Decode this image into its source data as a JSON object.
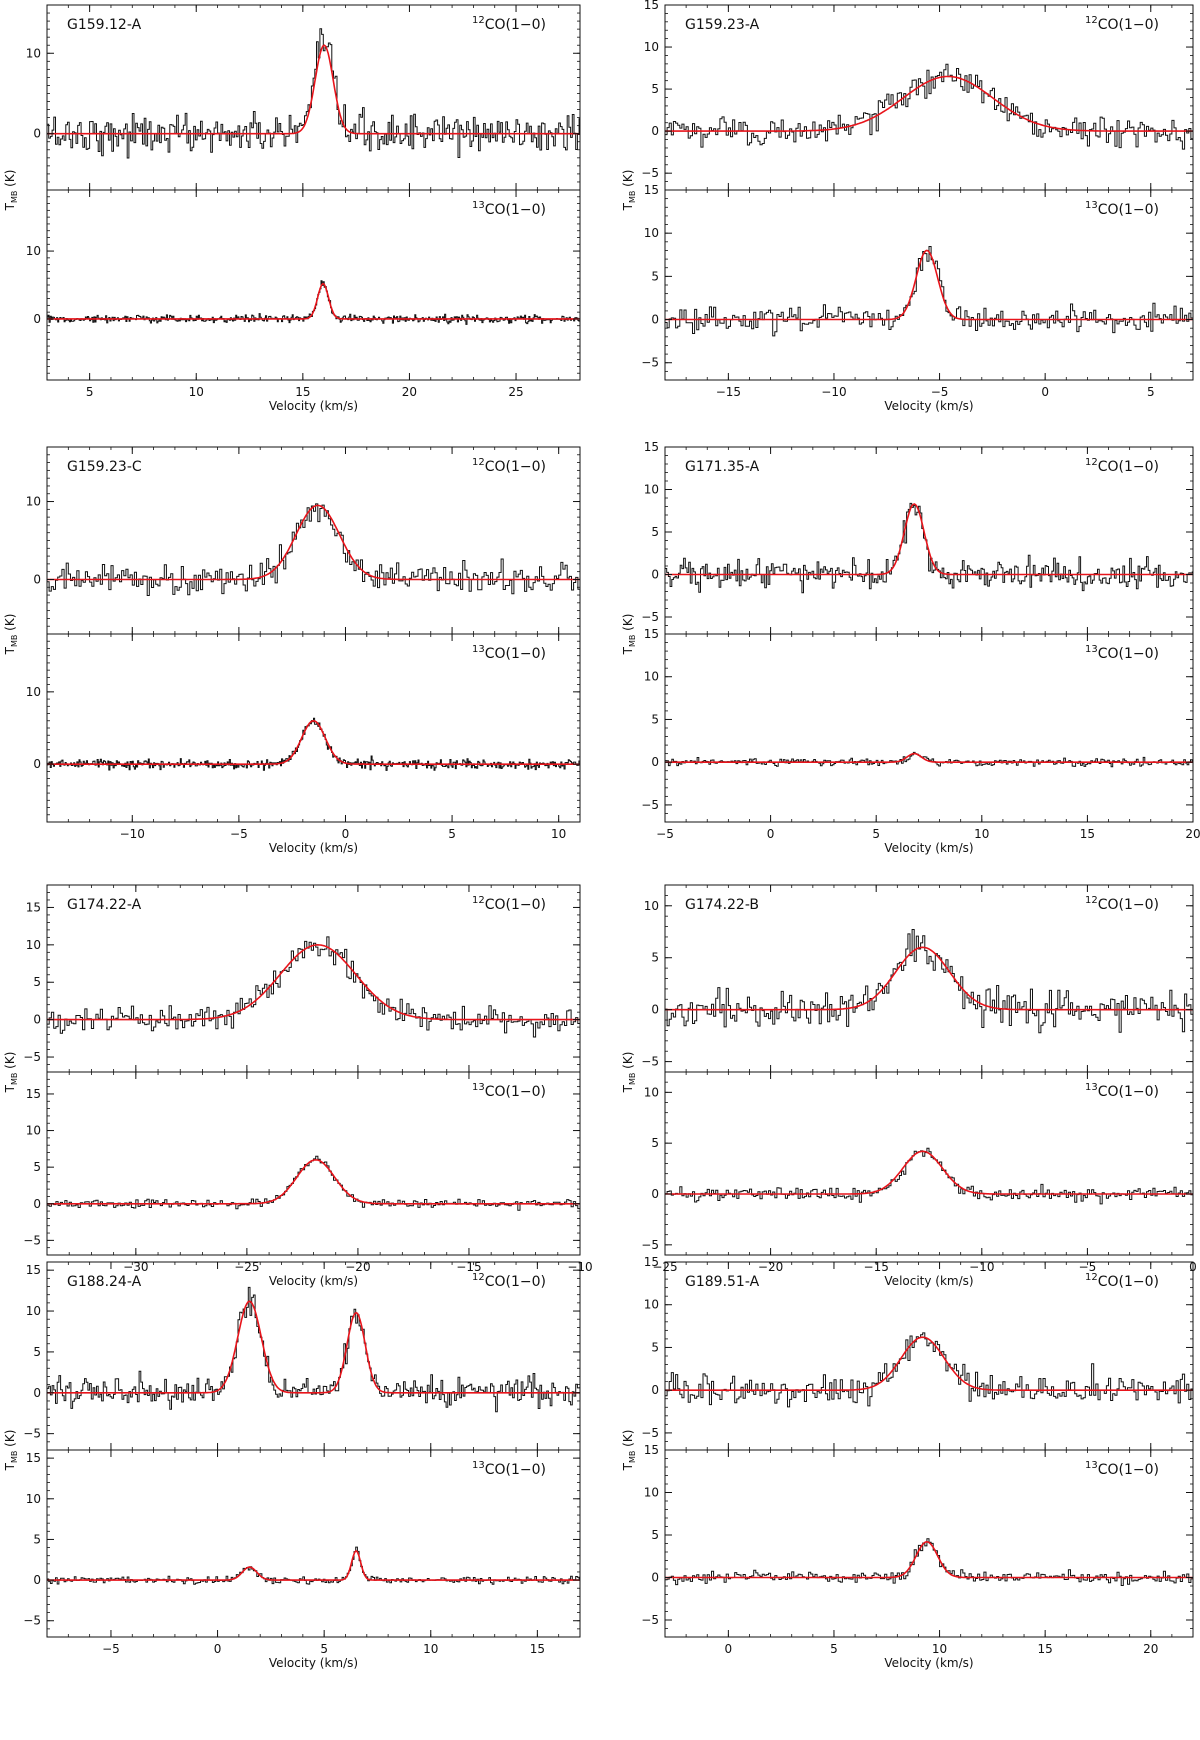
{
  "figure": {
    "x_axis_label": "Velocity (km/s)",
    "y_axis_label": "T",
    "y_axis_label_sub": "MB"
  },
  "chart_data": [
    {
      "type": "line",
      "title": "G159.12-A",
      "xlabel": "Velocity (km/s)",
      "ylabel": "TMB (K)",
      "xlim": [
        3,
        28
      ],
      "xticks": [
        5,
        10,
        15,
        20,
        25
      ],
      "panels": [
        {
          "label_iso": "12",
          "label_text": "CO(1−0)",
          "ylim": [
            -7,
            16
          ],
          "yticks": [
            0,
            10
          ],
          "fit": {
            "name": "Gaussian fit",
            "components": [
              {
                "amplitude": 11.0,
                "center": 16.0,
                "fwhm": 1.0
              }
            ]
          },
          "noise": 2.2,
          "bin": 0.08,
          "series_name": "spectrum"
        },
        {
          "label_iso": "13",
          "label_text": "CO(1−0)",
          "ylim": [
            -9,
            19
          ],
          "yticks": [
            0,
            10
          ],
          "fit": {
            "name": "Gaussian fit",
            "components": [
              {
                "amplitude": 5.2,
                "center": 15.95,
                "fwhm": 0.6
              }
            ]
          },
          "noise": 0.5,
          "bin": 0.05,
          "series_name": "spectrum"
        }
      ]
    },
    {
      "type": "line",
      "title": "G159.23-A",
      "xlabel": "Velocity (km/s)",
      "ylabel": "TMB (K)",
      "xlim": [
        -18,
        7
      ],
      "xticks": [
        -15,
        -10,
        -5,
        0,
        5
      ],
      "panels": [
        {
          "label_iso": "12",
          "label_text": "CO(1−0)",
          "ylim": [
            -7,
            15
          ],
          "yticks": [
            -5,
            0,
            5,
            10,
            15
          ],
          "fit": {
            "name": "Gaussian fit",
            "components": [
              {
                "amplitude": 6.5,
                "center": -4.6,
                "fwhm": 5.0
              }
            ]
          },
          "noise": 1.5,
          "bin": 0.1,
          "series_name": "spectrum"
        },
        {
          "label_iso": "13",
          "label_text": "CO(1−0)",
          "ylim": [
            -7,
            15
          ],
          "yticks": [
            -5,
            0,
            5,
            10,
            15
          ],
          "fit": {
            "name": "Gaussian fit",
            "components": [
              {
                "amplitude": 8.0,
                "center": -5.6,
                "fwhm": 1.2
              }
            ]
          },
          "noise": 1.3,
          "bin": 0.1,
          "series_name": "spectrum"
        }
      ]
    },
    {
      "type": "line",
      "title": "G159.23-C",
      "xlabel": "Velocity (km/s)",
      "ylabel": "TMB (K)",
      "xlim": [
        -14,
        11
      ],
      "xticks": [
        -10,
        -5,
        0,
        5,
        10
      ],
      "panels": [
        {
          "label_iso": "12",
          "label_text": "CO(1−0)",
          "ylim": [
            -7,
            17
          ],
          "yticks": [
            0,
            10
          ],
          "fit": {
            "name": "Gaussian fit",
            "components": [
              {
                "amplitude": 9.5,
                "center": -1.3,
                "fwhm": 2.4
              }
            ]
          },
          "noise": 1.7,
          "bin": 0.1,
          "series_name": "spectrum"
        },
        {
          "label_iso": "13",
          "label_text": "CO(1−0)",
          "ylim": [
            -8,
            18
          ],
          "yticks": [
            0,
            10
          ],
          "fit": {
            "name": "Gaussian fit",
            "components": [
              {
                "amplitude": 6.0,
                "center": -1.5,
                "fwhm": 1.3
              }
            ]
          },
          "noise": 0.6,
          "bin": 0.05,
          "series_name": "spectrum"
        }
      ]
    },
    {
      "type": "line",
      "title": "G171.35-A",
      "xlabel": "Velocity (km/s)",
      "ylabel": "TMB (K)",
      "xlim": [
        -5,
        20
      ],
      "xticks": [
        -5,
        0,
        5,
        10,
        15,
        20
      ],
      "panels": [
        {
          "label_iso": "12",
          "label_text": "CO(1−0)",
          "ylim": [
            -7,
            15
          ],
          "yticks": [
            -5,
            0,
            5,
            10,
            15
          ],
          "fit": {
            "name": "Gaussian fit",
            "components": [
              {
                "amplitude": 8.3,
                "center": 6.8,
                "fwhm": 1.1
              }
            ]
          },
          "noise": 1.5,
          "bin": 0.08,
          "series_name": "spectrum"
        },
        {
          "label_iso": "13",
          "label_text": "CO(1−0)",
          "ylim": [
            -7,
            15
          ],
          "yticks": [
            -5,
            0,
            5,
            10,
            15
          ],
          "fit": {
            "name": "Gaussian fit",
            "components": [
              {
                "amplitude": 1.0,
                "center": 6.8,
                "fwhm": 0.8
              }
            ]
          },
          "noise": 0.4,
          "bin": 0.08,
          "series_name": "spectrum"
        }
      ]
    },
    {
      "type": "line",
      "title": "G174.22-A",
      "xlabel": "Velocity (km/s)",
      "ylabel": "TMB (K)",
      "xlim": [
        -34,
        -10
      ],
      "xticks": [
        -30,
        -25,
        -20,
        -15,
        -10
      ],
      "panels": [
        {
          "label_iso": "12",
          "label_text": "CO(1−0)",
          "ylim": [
            -7,
            18
          ],
          "yticks": [
            -5,
            0,
            5,
            10,
            15
          ],
          "fit": {
            "name": "Gaussian fit",
            "components": [
              {
                "amplitude": 10.0,
                "center": -21.8,
                "fwhm": 4.0
              }
            ]
          },
          "noise": 1.5,
          "bin": 0.1,
          "series_name": "spectrum"
        },
        {
          "label_iso": "13",
          "label_text": "CO(1−0)",
          "ylim": [
            -7,
            18
          ],
          "yticks": [
            -5,
            0,
            5,
            10,
            15
          ],
          "fit": {
            "name": "Gaussian fit",
            "components": [
              {
                "amplitude": 6.0,
                "center": -21.9,
                "fwhm": 2.0
              }
            ]
          },
          "noise": 0.5,
          "bin": 0.1,
          "series_name": "spectrum"
        }
      ]
    },
    {
      "type": "line",
      "title": "G174.22-B",
      "xlabel": "Velocity (km/s)",
      "ylabel": "TMB (K)",
      "xlim": [
        -25,
        0
      ],
      "xticks": [
        -25,
        -20,
        -15,
        -10,
        -5,
        0
      ],
      "panels": [
        {
          "label_iso": "12",
          "label_text": "CO(1−0)",
          "ylim": [
            -6,
            12
          ],
          "yticks": [
            -5,
            0,
            5,
            10
          ],
          "fit": {
            "name": "Gaussian fit",
            "components": [
              {
                "amplitude": 6.0,
                "center": -12.8,
                "fwhm": 3.0
              }
            ]
          },
          "noise": 1.6,
          "bin": 0.1,
          "series_name": "spectrum"
        },
        {
          "label_iso": "13",
          "label_text": "CO(1−0)",
          "ylim": [
            -6,
            12
          ],
          "yticks": [
            -5,
            0,
            5,
            10
          ],
          "fit": {
            "name": "Gaussian fit",
            "components": [
              {
                "amplitude": 4.2,
                "center": -12.8,
                "fwhm": 2.2
              }
            ]
          },
          "noise": 0.6,
          "bin": 0.1,
          "series_name": "spectrum"
        }
      ]
    },
    {
      "type": "line",
      "title": "G188.24-A",
      "xlabel": "Velocity (km/s)",
      "ylabel": "TMB (K)",
      "xlim": [
        -8,
        17
      ],
      "xticks": [
        -5,
        0,
        5,
        10,
        15
      ],
      "panels": [
        {
          "label_iso": "12",
          "label_text": "CO(1−0)",
          "ylim": [
            -7,
            16
          ],
          "yticks": [
            -5,
            0,
            5,
            10,
            15
          ],
          "fit": {
            "name": "Gaussian fit",
            "components": [
              {
                "amplitude": 11.2,
                "center": 1.5,
                "fwhm": 1.3
              },
              {
                "amplitude": 9.8,
                "center": 6.5,
                "fwhm": 1.0
              }
            ]
          },
          "noise": 1.6,
          "bin": 0.08,
          "series_name": "spectrum"
        },
        {
          "label_iso": "13",
          "label_text": "CO(1−0)",
          "ylim": [
            -7,
            16
          ],
          "yticks": [
            -5,
            0,
            5,
            10,
            15
          ],
          "fit": {
            "name": "Gaussian fit",
            "components": [
              {
                "amplitude": 1.6,
                "center": 1.5,
                "fwhm": 0.8
              },
              {
                "amplitude": 3.6,
                "center": 6.5,
                "fwhm": 0.5
              }
            ]
          },
          "noise": 0.4,
          "bin": 0.08,
          "series_name": "spectrum"
        }
      ]
    },
    {
      "type": "line",
      "title": "G189.51-A",
      "xlabel": "Velocity (km/s)",
      "ylabel": "TMB (K)",
      "xlim": [
        -3,
        22
      ],
      "xticks": [
        0,
        5,
        10,
        15,
        20
      ],
      "panels": [
        {
          "label_iso": "12",
          "label_text": "CO(1−0)",
          "ylim": [
            -7,
            15
          ],
          "yticks": [
            -5,
            0,
            5,
            10,
            15
          ],
          "fit": {
            "name": "Gaussian fit",
            "components": [
              {
                "amplitude": 6.2,
                "center": 9.2,
                "fwhm": 2.4
              }
            ]
          },
          "noise": 1.5,
          "bin": 0.1,
          "series_name": "spectrum"
        },
        {
          "label_iso": "13",
          "label_text": "CO(1−0)",
          "ylim": [
            -7,
            15
          ],
          "yticks": [
            -5,
            0,
            5,
            10,
            15
          ],
          "fit": {
            "name": "Gaussian fit",
            "components": [
              {
                "amplitude": 4.2,
                "center": 9.4,
                "fwhm": 1.2
              }
            ]
          },
          "noise": 0.6,
          "bin": 0.1,
          "series_name": "spectrum"
        }
      ]
    }
  ]
}
